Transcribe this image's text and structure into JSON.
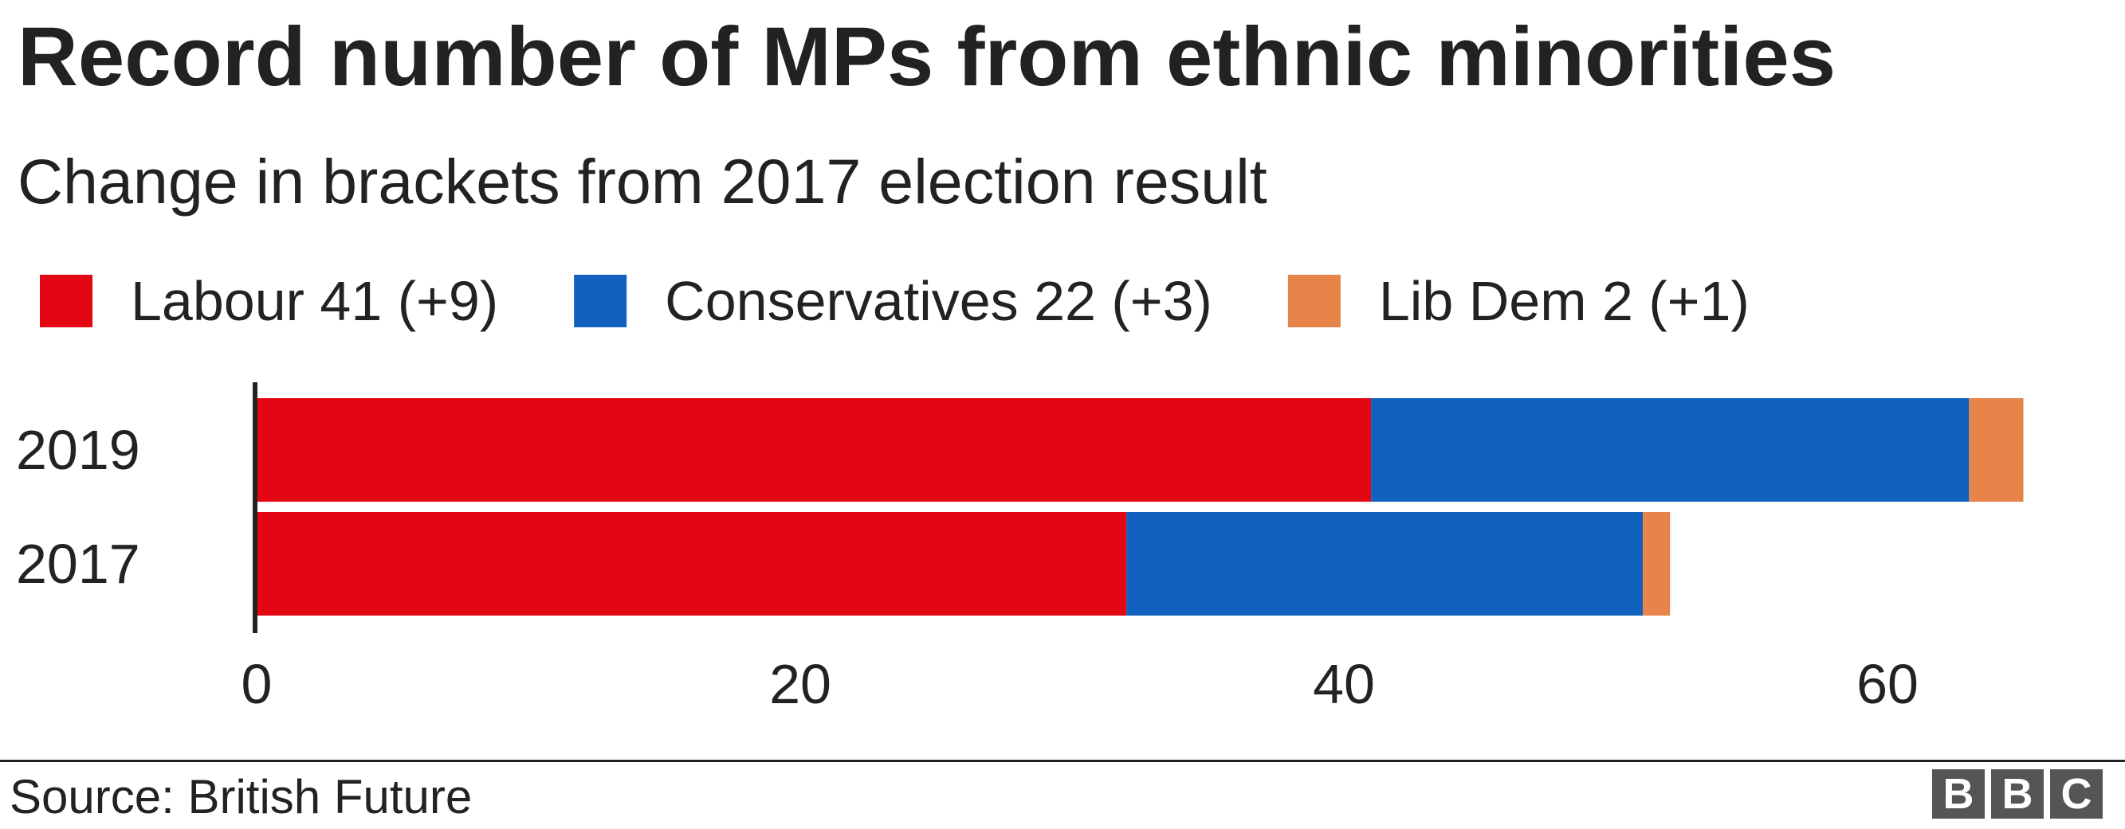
{
  "chart_data": {
    "type": "bar",
    "orientation": "horizontal",
    "stacked": true,
    "title": "Record number of MPs from ethnic minorities",
    "subtitle": "Change in brackets from 2017 election result",
    "categories": [
      "2019",
      "2017"
    ],
    "series": [
      {
        "name": "Labour 41 (+9)",
        "values": [
          41,
          32
        ],
        "color": "#e30613"
      },
      {
        "name": "Conservatives 22 (+3)",
        "values": [
          22,
          19
        ],
        "color": "#1161bf"
      },
      {
        "name": "Lib Dem 2 (+1)",
        "values": [
          2,
          1
        ],
        "color": "#e6844a"
      }
    ],
    "xlim": [
      0,
      65
    ],
    "xticks": [
      0,
      20,
      40,
      60
    ],
    "grid": false,
    "legend_position": "top-left"
  },
  "footer": {
    "source": "Source: British Future",
    "logo": [
      "B",
      "B",
      "C"
    ]
  }
}
